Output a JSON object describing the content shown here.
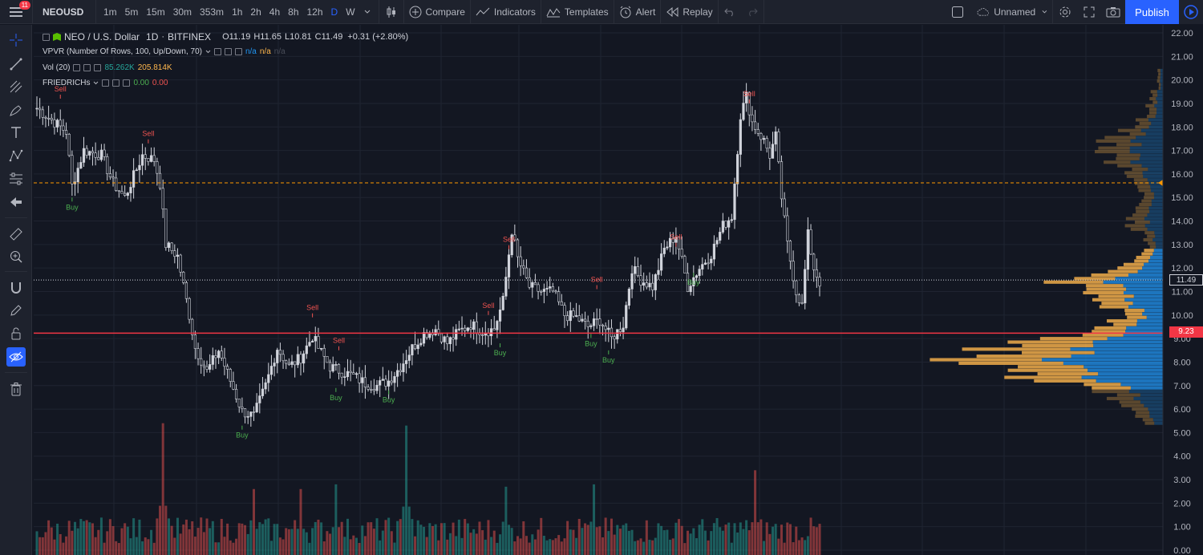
{
  "toolbar": {
    "notification_count": "11",
    "symbol": "NEOUSD",
    "intervals": [
      "1m",
      "5m",
      "15m",
      "30m",
      "353m",
      "1h",
      "2h",
      "4h",
      "8h",
      "12h",
      "D",
      "W"
    ],
    "active_interval": "D",
    "compare_label": "Compare",
    "indicators_label": "Indicators",
    "templates_label": "Templates",
    "alert_label": "Alert",
    "replay_label": "Replay",
    "layout_name": "Unnamed",
    "publish_label": "Publish"
  },
  "legend": {
    "title": "NEO / U.S. Dollar",
    "interval": "1D",
    "exchange": "BITFINEX",
    "open": "O11.19",
    "high": "H11.65",
    "low": "L10.81",
    "close": "C11.49",
    "change": "+0.31 (+2.80%)",
    "vpvr_label": "VPVR (Number Of Rows, 100, Up/Down, 70)",
    "vpvr_val1": "n/a",
    "vpvr_val2": "n/a",
    "vpvr_val3": "n/a",
    "vol_label": "Vol (20)",
    "vol_val1": "85.262K",
    "vol_val2": "205.814K",
    "fried_label": "FRIEDRICHs",
    "fried_val1": "0.00",
    "fried_val2": "0.00"
  },
  "price_axis": {
    "labels": [
      "22.00",
      "21.00",
      "20.00",
      "19.00",
      "18.00",
      "17.00",
      "16.00",
      "15.00",
      "14.00",
      "13.00",
      "12.00",
      "11.00",
      "10.00",
      "9.00",
      "8.00",
      "7.00",
      "6.00",
      "5.00",
      "4.00",
      "3.00",
      "2.00",
      "1.00",
      "0.00"
    ],
    "current_price": "11.49",
    "support_price": "9.23",
    "max": 22,
    "min": 0
  },
  "levels": {
    "support": 9.23,
    "resistance": 15.62,
    "current": 11.49
  },
  "signals": [
    {
      "label": "Sell",
      "type": "sell",
      "index": 8,
      "price": 19.1
    },
    {
      "label": "Buy",
      "type": "buy",
      "index": 12,
      "price": 15.1
    },
    {
      "label": "Sell",
      "type": "sell",
      "index": 38,
      "price": 17.2
    },
    {
      "label": "Sell",
      "type": "sell",
      "index": 94,
      "price": 9.8
    },
    {
      "label": "Sell",
      "type": "sell",
      "index": 103,
      "price": 8.4
    },
    {
      "label": "Buy",
      "type": "buy",
      "index": 70,
      "price": 5.4
    },
    {
      "label": "Buy",
      "type": "buy",
      "index": 102,
      "price": 7.0
    },
    {
      "label": "Buy",
      "type": "buy",
      "index": 120,
      "price": 6.9
    },
    {
      "label": "Sell",
      "type": "sell",
      "index": 161,
      "price": 12.7
    },
    {
      "label": "Sell",
      "type": "sell",
      "index": 154,
      "price": 9.9
    },
    {
      "label": "Buy",
      "type": "buy",
      "index": 158,
      "price": 8.9
    },
    {
      "label": "Sell",
      "type": "sell",
      "index": 191,
      "price": 11.0
    },
    {
      "label": "Buy",
      "type": "buy",
      "index": 189,
      "price": 9.3
    },
    {
      "label": "Buy",
      "type": "buy",
      "index": 195,
      "price": 8.6
    },
    {
      "label": "Sell",
      "type": "sell",
      "index": 218,
      "price": 12.8
    },
    {
      "label": "Buy",
      "type": "buy",
      "index": 224,
      "price": 11.9
    },
    {
      "label": "Sell",
      "type": "sell",
      "index": 243,
      "price": 18.9
    }
  ],
  "chart_data": {
    "type": "candlestick",
    "title": "NEO / U.S. Dollar",
    "ylim": [
      0,
      22
    ],
    "anchors": [
      [
        0,
        18.8
      ],
      [
        6,
        18.2
      ],
      [
        10,
        17.8
      ],
      [
        12,
        15.5
      ],
      [
        16,
        17.0
      ],
      [
        22,
        16.8
      ],
      [
        26,
        15.6
      ],
      [
        30,
        15.0
      ],
      [
        36,
        16.8
      ],
      [
        40,
        16.6
      ],
      [
        42,
        15.6
      ],
      [
        44,
        13.0
      ],
      [
        48,
        12.5
      ],
      [
        52,
        10.0
      ],
      [
        54,
        8.6
      ],
      [
        58,
        7.6
      ],
      [
        62,
        8.5
      ],
      [
        66,
        7.2
      ],
      [
        70,
        5.9
      ],
      [
        74,
        5.7
      ],
      [
        78,
        7.0
      ],
      [
        82,
        8.6
      ],
      [
        86,
        7.8
      ],
      [
        90,
        8.2
      ],
      [
        94,
        9.1
      ],
      [
        96,
        8.6
      ],
      [
        100,
        7.8
      ],
      [
        104,
        7.6
      ],
      [
        108,
        7.4
      ],
      [
        112,
        7.1
      ],
      [
        116,
        7.0
      ],
      [
        120,
        7.2
      ],
      [
        124,
        7.8
      ],
      [
        128,
        8.6
      ],
      [
        132,
        9.2
      ],
      [
        136,
        9.4
      ],
      [
        140,
        8.8
      ],
      [
        144,
        9.3
      ],
      [
        148,
        9.6
      ],
      [
        152,
        9.3
      ],
      [
        156,
        9.4
      ],
      [
        159,
        10.6
      ],
      [
        162,
        13.6
      ],
      [
        164,
        12.4
      ],
      [
        168,
        11.2
      ],
      [
        172,
        11.0
      ],
      [
        176,
        11.0
      ],
      [
        180,
        10.0
      ],
      [
        184,
        9.9
      ],
      [
        188,
        9.5
      ],
      [
        192,
        9.8
      ],
      [
        196,
        9.0
      ],
      [
        200,
        9.6
      ],
      [
        203,
        12.0
      ],
      [
        206,
        11.5
      ],
      [
        210,
        11.2
      ],
      [
        214,
        12.8
      ],
      [
        218,
        13.4
      ],
      [
        222,
        11.2
      ],
      [
        226,
        12.0
      ],
      [
        230,
        12.6
      ],
      [
        234,
        13.8
      ],
      [
        237,
        14.2
      ],
      [
        240,
        18.5
      ],
      [
        242,
        19.3
      ],
      [
        244,
        18.2
      ],
      [
        248,
        17.4
      ],
      [
        250,
        16.8
      ],
      [
        252,
        17.6
      ],
      [
        254,
        15.0
      ],
      [
        256,
        13.0
      ],
      [
        259,
        11.0
      ],
      [
        261,
        10.4
      ],
      [
        263,
        13.4
      ],
      [
        265,
        12.0
      ],
      [
        267,
        11.4
      ]
    ],
    "volume_peaks": [
      [
        43,
        5.4
      ],
      [
        126,
        5.3
      ],
      [
        245,
        3.4
      ],
      [
        190,
        2.8
      ],
      [
        74,
        2.6
      ],
      [
        102,
        2.8
      ],
      [
        90,
        2.6
      ],
      [
        160,
        2.7
      ]
    ],
    "volume_axis_max": 5.6
  },
  "colors": {
    "up": "#26a69a",
    "down": "#ef5350",
    "background": "#131722",
    "grid": "#2a2e39",
    "candle": "#d1d4dc",
    "vp_up": "#2196f3",
    "vp_down": "#ffb74d",
    "support": "#f23645",
    "resistance": "#ff9800",
    "accent": "#2962ff"
  }
}
